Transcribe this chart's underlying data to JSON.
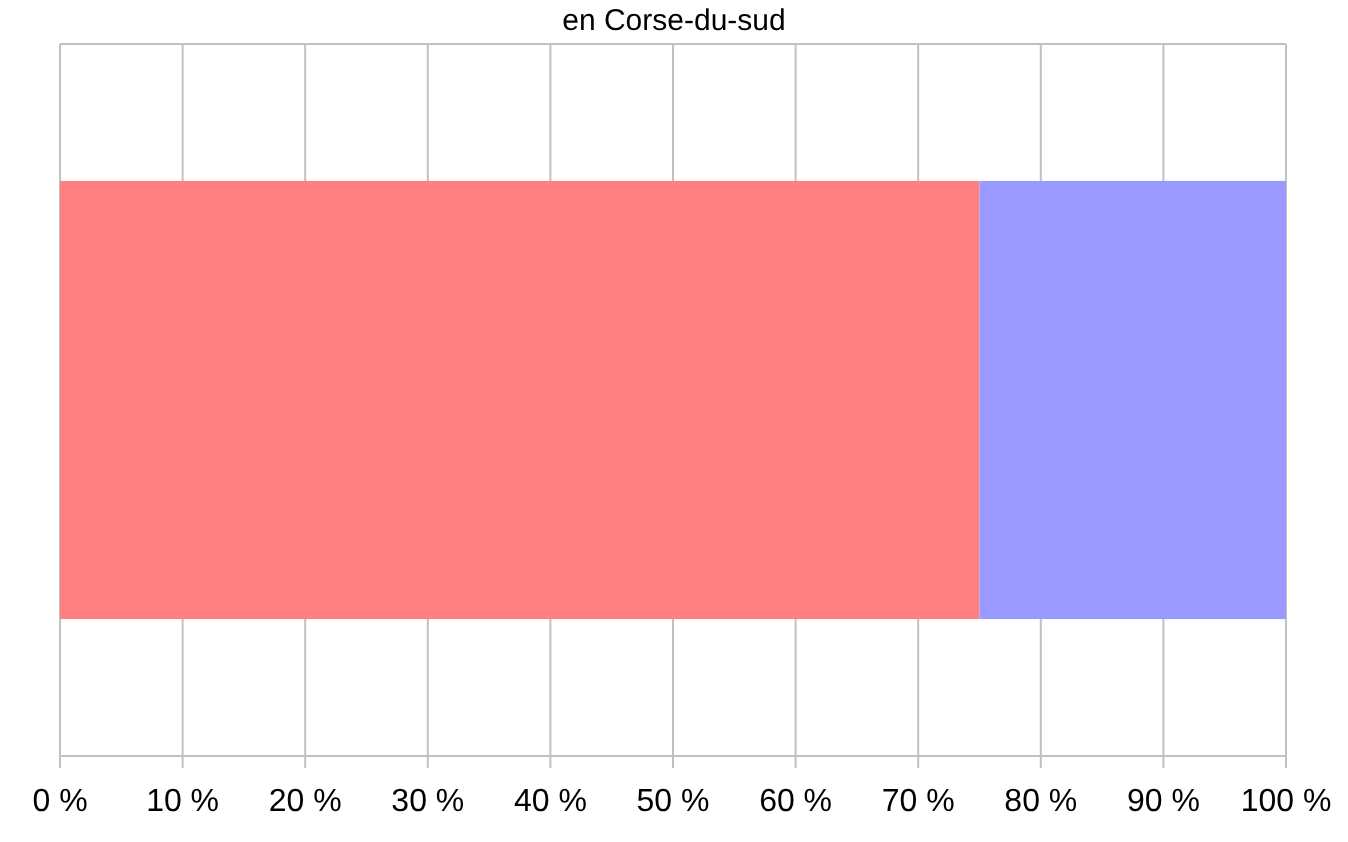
{
  "chart_data": {
    "type": "bar",
    "orientation": "horizontal",
    "stacked": true,
    "title": "en Corse-du-sud",
    "categories": [
      null
    ],
    "series": [
      {
        "color": "#ff8080",
        "values": [
          75
        ]
      },
      {
        "color": "#9999ff",
        "values": [
          25
        ]
      }
    ],
    "xlim": [
      0,
      100
    ],
    "xticks": [
      {
        "value": 0,
        "label": "0 %"
      },
      {
        "value": 10,
        "label": "10 %"
      },
      {
        "value": 20,
        "label": "20 %"
      },
      {
        "value": 30,
        "label": "30 %"
      },
      {
        "value": 40,
        "label": "40 %"
      },
      {
        "value": 50,
        "label": "50 %"
      },
      {
        "value": 60,
        "label": "60 %"
      },
      {
        "value": 70,
        "label": "70 %"
      },
      {
        "value": 80,
        "label": "80 %"
      },
      {
        "value": 90,
        "label": "90 %"
      },
      {
        "value": 100,
        "label": "100 %"
      }
    ],
    "grid": "x",
    "tick_labels": "x"
  }
}
